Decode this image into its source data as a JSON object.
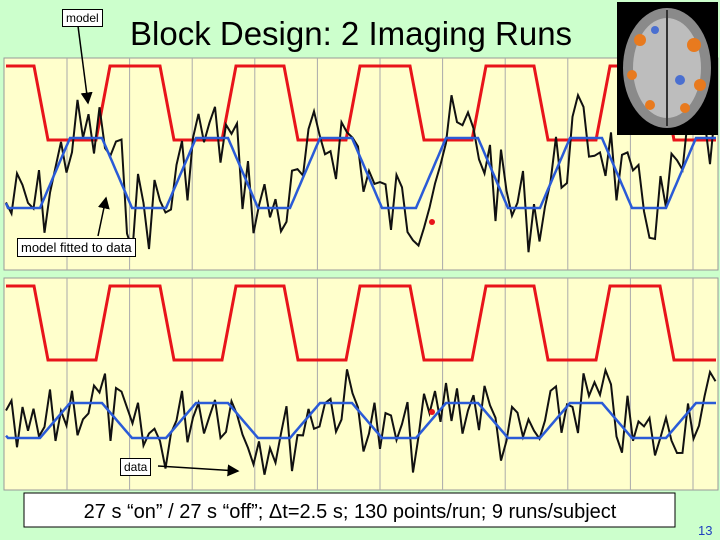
{
  "title": "Block Design: 2 Imaging Runs",
  "labels": {
    "model": "model",
    "fitted": "model fitted to data",
    "data": "data"
  },
  "caption": "27 s “on” / 27 s “off”; Δt=2.5 s; 130 points/run; 9 runs/subject",
  "page_number": "13"
}
